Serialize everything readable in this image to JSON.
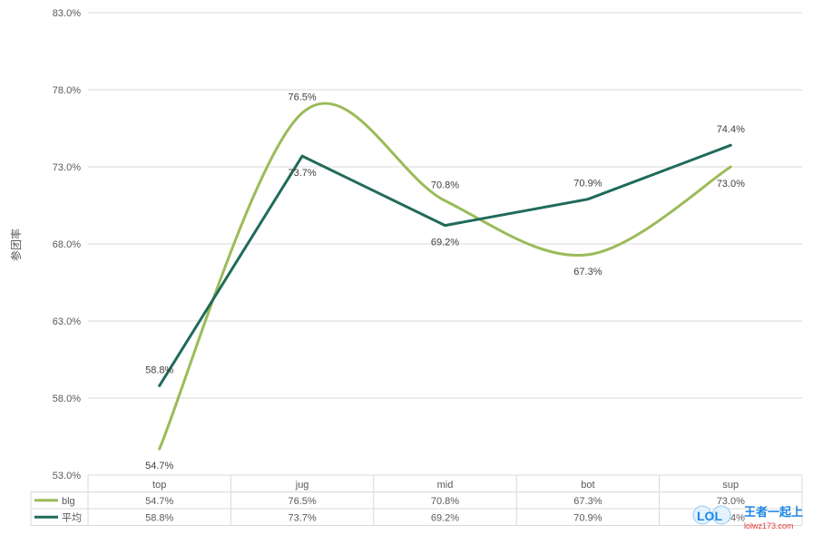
{
  "chart_data": {
    "type": "line",
    "title": "",
    "xlabel": "",
    "ylabel": "参团率",
    "ylim": [
      53.0,
      83.0
    ],
    "yticks": [
      "53.0%",
      "58.0%",
      "63.0%",
      "68.0%",
      "73.0%",
      "78.0%",
      "83.0%"
    ],
    "categories": [
      "top",
      "jug",
      "mid",
      "bot",
      "sup"
    ],
    "series": [
      {
        "name": "blg",
        "color": "#9bbb59",
        "smooth": true,
        "values": [
          54.7,
          76.5,
          70.8,
          67.3,
          73.0
        ],
        "labels": [
          "54.7%",
          "76.5%",
          "70.8%",
          "67.3%",
          "73.0%"
        ]
      },
      {
        "name": "平均",
        "color": "#1f6b5b",
        "smooth": false,
        "values": [
          58.8,
          73.7,
          69.2,
          70.9,
          74.4
        ],
        "labels": [
          "58.8%",
          "73.7%",
          "69.2%",
          "70.9%",
          "74.4%"
        ]
      }
    ],
    "legend": "data-table-bottom"
  },
  "watermark": {
    "logo": "LOL",
    "text": "王者一起上",
    "url": "lolwz173.com"
  }
}
